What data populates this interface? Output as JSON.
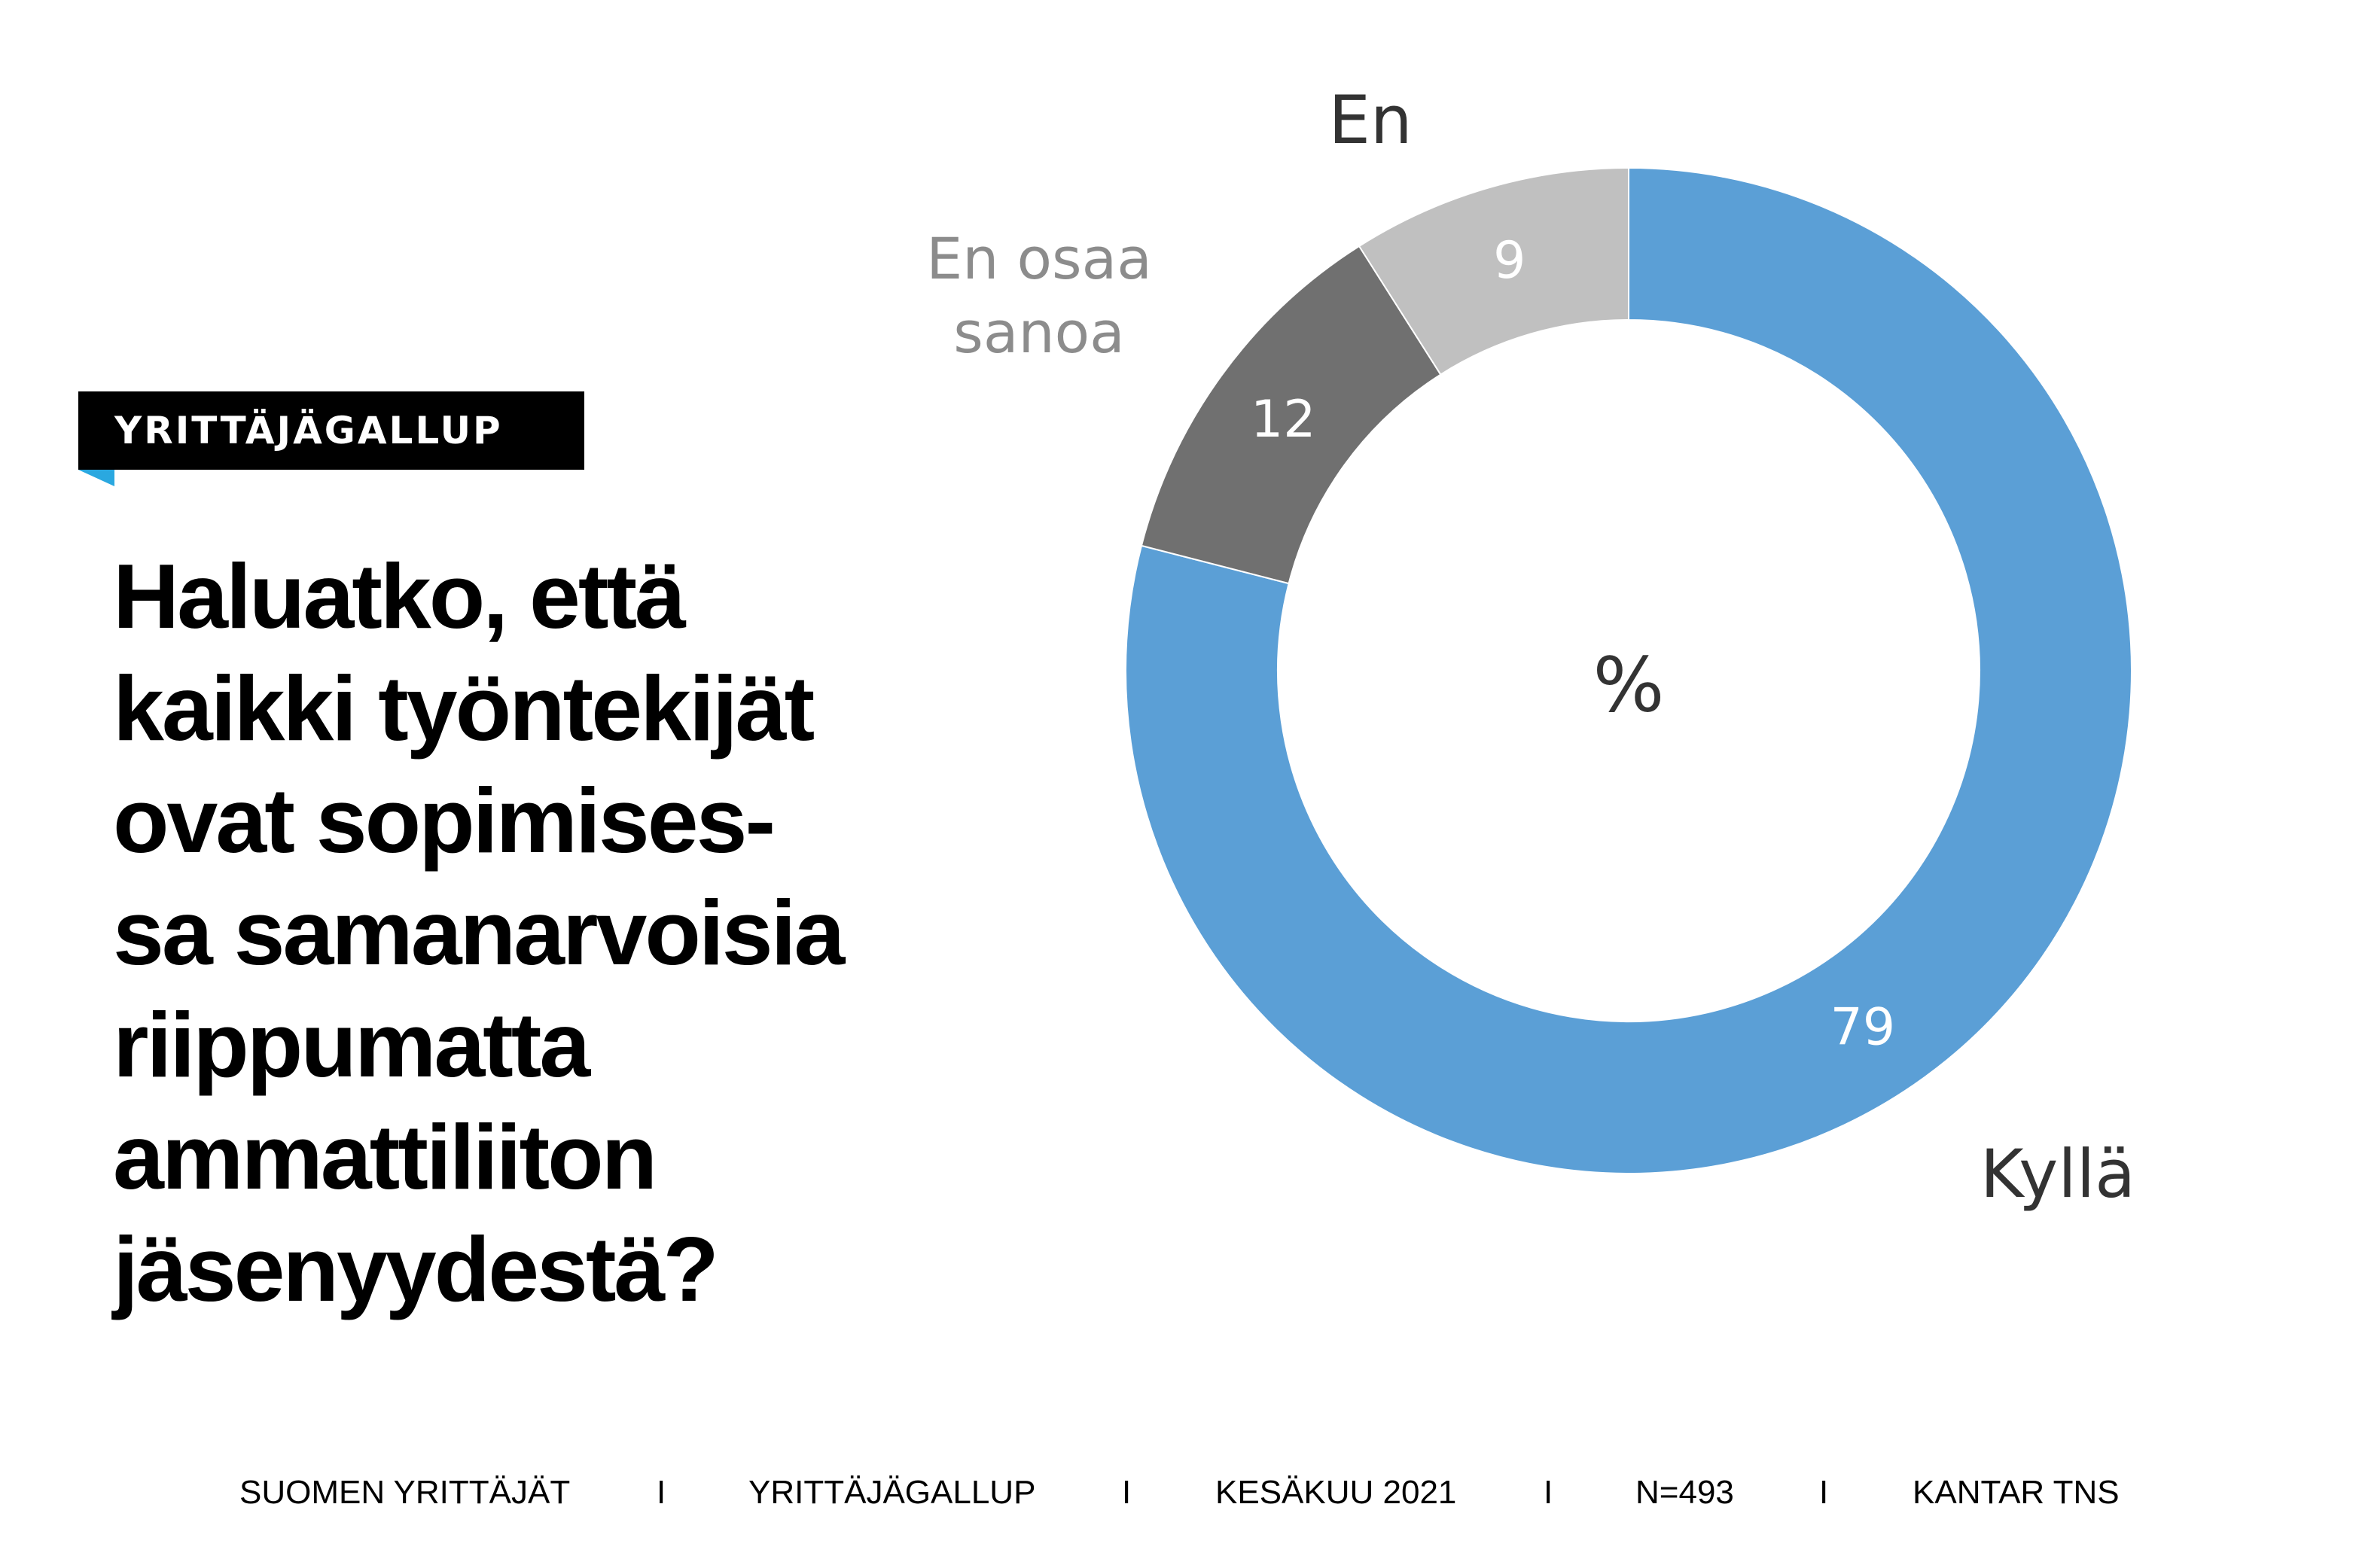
{
  "badge": "YRITTÄJÄGALLUP",
  "question_lines": [
    "Haluatko, että",
    "kaikki työntekijät",
    "ovat sopimises-",
    "sa samanarvoisia",
    "riippumatta",
    "ammattiliiton",
    "jäsenyydestä?"
  ],
  "chart_data": {
    "type": "donut",
    "center_label": "%",
    "slices": [
      {
        "label": "Kyllä",
        "value": 79,
        "color": "#5b9fd6"
      },
      {
        "label": "En",
        "value": 12,
        "color": "#707070"
      },
      {
        "label": "En osaa sanoa",
        "value": 9,
        "color": "#c0c0c0"
      }
    ]
  },
  "footer": {
    "items": [
      "SUOMEN YRITTÄJÄT",
      "YRITTÄJÄGALLUP",
      "KESÄKUU 2021",
      "N=493",
      "KANTAR TNS"
    ],
    "separator": "I"
  }
}
